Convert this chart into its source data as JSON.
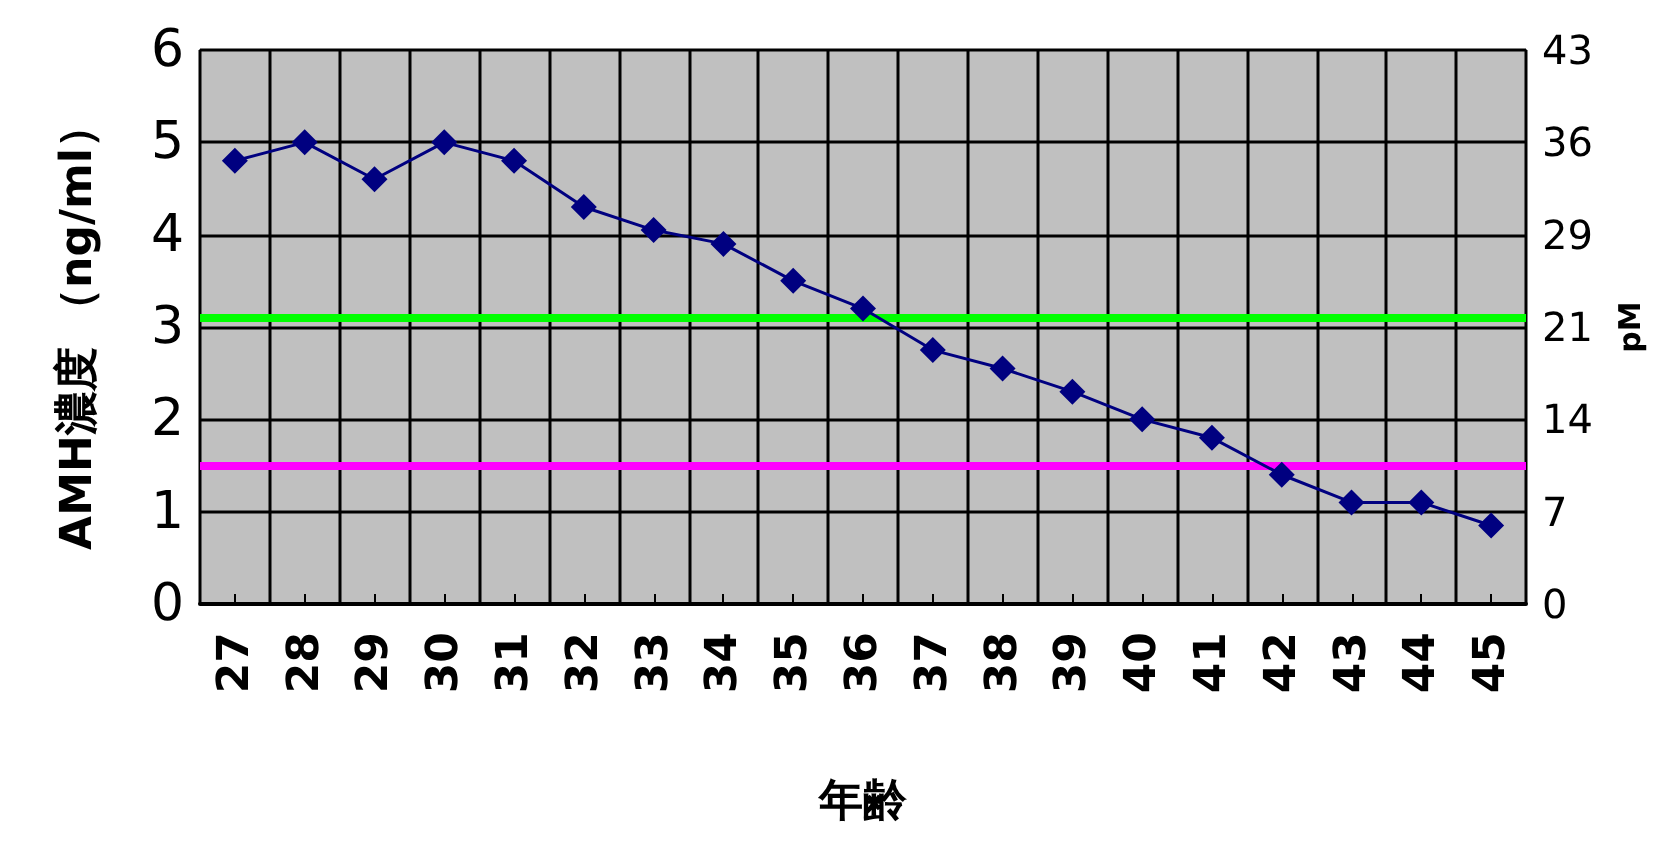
{
  "chart_data": {
    "type": "line",
    "xlabel": "年齢",
    "ylabel": "AMH濃度 （ng/ml）",
    "y2label": "pM",
    "categories": [
      "27",
      "28",
      "29",
      "30",
      "31",
      "32",
      "33",
      "34",
      "35",
      "36",
      "37",
      "38",
      "39",
      "40",
      "41",
      "42",
      "43",
      "44",
      "45"
    ],
    "series": [
      {
        "color": "#000080",
        "values": [
          4.8,
          5.0,
          4.6,
          5.0,
          4.8,
          4.3,
          4.05,
          3.9,
          3.5,
          3.2,
          2.75,
          2.55,
          2.3,
          2.0,
          1.8,
          1.4,
          1.1,
          1.1,
          0.85
        ]
      }
    ],
    "ylim": [
      0,
      6
    ],
    "yticks": [
      0,
      1,
      2,
      3,
      4,
      5,
      6
    ],
    "y2lim": [
      0,
      42.9
    ],
    "y2ticks": [
      0,
      {
        "value": 7.15,
        "label": "7"
      },
      {
        "value": 14.3,
        "label": "14"
      },
      {
        "value": 21.45,
        "label": "21"
      },
      {
        "value": 28.6,
        "label": "29"
      },
      {
        "value": 35.75,
        "label": "36"
      },
      {
        "value": 42.9,
        "label": "43"
      }
    ],
    "ref_lines": [
      {
        "axis": "y",
        "value": 3.1,
        "color": "#00ff00"
      },
      {
        "axis": "y",
        "value": 1.5,
        "color": "#ff00ff"
      }
    ],
    "grid": true,
    "marker": "diamond",
    "line_style": "solid"
  }
}
